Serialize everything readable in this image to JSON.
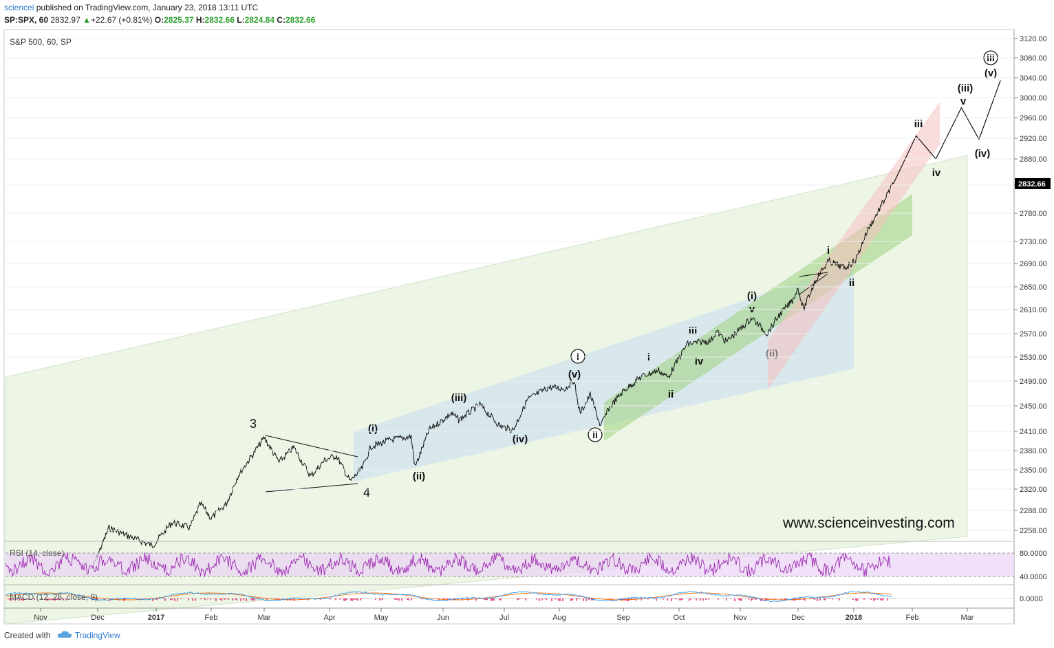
{
  "header": {
    "author": "sciencei",
    "published_text": "published on TradingView.com, January 23, 2018 13:11 UTC",
    "symbol": "SP:SPX, 60",
    "last_price": "2832.97",
    "change": "+22.67 (+0.81%)",
    "o_label": "O:",
    "o_value": "2825.37",
    "h_label": "H:",
    "h_value": "2832.66",
    "l_label": "L:",
    "l_value": "2824.84",
    "c_label": "C:",
    "c_value": "2832.66"
  },
  "footer": {
    "created_with": "Created with",
    "brand": "TradingView"
  },
  "colors": {
    "candle": "#111111",
    "rsi": "#9c27b0",
    "rsi_band": "#ead3f5",
    "macd": "#2196f3",
    "signal": "#ff6f00",
    "hist_neg": "#e91e63",
    "channel_big": "#dfeccf",
    "channel_blue": "#cfe2ee",
    "channel_green": "#9fd27f",
    "channel_pink": "#f5c0c0",
    "price_tag": "#000000"
  },
  "chart_data": {
    "type": "candlestick",
    "pane_label": "S&P 500, 60, SP",
    "watermark": "www.scienceinvesting.com",
    "y_ticks": [
      3120.0,
      3080.0,
      3040.0,
      3000.0,
      2960.0,
      2920.0,
      2880.0,
      2830.0,
      2780.0,
      2730.0,
      2690.0,
      2650.0,
      2610.0,
      2570.0,
      2530.0,
      2490.0,
      2450.0,
      2410.0,
      2380.0,
      2350.0,
      2320.0,
      2288.0,
      2258.0
    ],
    "last_price_tag": "2832.66",
    "x_ticks": [
      {
        "label": "Nov",
        "bold": false
      },
      {
        "label": "Dec",
        "bold": false
      },
      {
        "label": "2017",
        "bold": true
      },
      {
        "label": "Feb",
        "bold": false
      },
      {
        "label": "Mar",
        "bold": false
      },
      {
        "label": "Apr",
        "bold": false
      },
      {
        "label": "May",
        "bold": false
      },
      {
        "label": "Jun",
        "bold": false
      },
      {
        "label": "Jul",
        "bold": false
      },
      {
        "label": "Aug",
        "bold": false
      },
      {
        "label": "Sep",
        "bold": false
      },
      {
        "label": "Oct",
        "bold": false
      },
      {
        "label": "Nov",
        "bold": false
      },
      {
        "label": "Dec",
        "bold": false
      },
      {
        "label": "2018",
        "bold": true
      },
      {
        "label": "Feb",
        "bold": false
      },
      {
        "label": "Mar",
        "bold": false
      }
    ],
    "price_path": [
      [
        "2016-11-28",
        2200
      ],
      [
        "2016-12-07",
        2262
      ],
      [
        "2016-12-15",
        2252
      ],
      [
        "2016-12-30",
        2235
      ],
      [
        "2017-01-10",
        2270
      ],
      [
        "2017-01-20",
        2262
      ],
      [
        "2017-01-26",
        2298
      ],
      [
        "2017-02-01",
        2276
      ],
      [
        "2017-02-09",
        2298
      ],
      [
        "2017-02-15",
        2340
      ],
      [
        "2017-02-22",
        2370
      ],
      [
        "2017-03-01",
        2400
      ],
      [
        "2017-03-08",
        2362
      ],
      [
        "2017-03-15",
        2385
      ],
      [
        "2017-03-23",
        2340
      ],
      [
        "2017-03-30",
        2366
      ],
      [
        "2017-04-05",
        2372
      ],
      [
        "2017-04-13",
        2332
      ],
      [
        "2017-04-20",
        2352
      ],
      [
        "2017-04-25",
        2386
      ],
      [
        "2017-05-05",
        2396
      ],
      [
        "2017-05-16",
        2402
      ],
      [
        "2017-05-18",
        2354
      ],
      [
        "2017-05-25",
        2412
      ],
      [
        "2017-06-05",
        2438
      ],
      [
        "2017-06-09",
        2428
      ],
      [
        "2017-06-19",
        2452
      ],
      [
        "2017-06-29",
        2418
      ],
      [
        "2017-07-06",
        2412
      ],
      [
        "2017-07-14",
        2460
      ],
      [
        "2017-07-26",
        2480
      ],
      [
        "2017-08-04",
        2478
      ],
      [
        "2017-08-08",
        2492
      ],
      [
        "2017-08-11",
        2438
      ],
      [
        "2017-08-16",
        2468
      ],
      [
        "2017-08-21",
        2418
      ],
      [
        "2017-08-25",
        2446
      ],
      [
        "2017-09-01",
        2474
      ],
      [
        "2017-09-11",
        2498
      ],
      [
        "2017-09-20",
        2508
      ],
      [
        "2017-09-25",
        2496
      ],
      [
        "2017-10-05",
        2552
      ],
      [
        "2017-10-13",
        2556
      ],
      [
        "2017-10-17",
        2558
      ],
      [
        "2017-10-20",
        2574
      ],
      [
        "2017-10-25",
        2556
      ],
      [
        "2017-11-07",
        2596
      ],
      [
        "2017-11-15",
        2570
      ],
      [
        "2017-11-21",
        2600
      ],
      [
        "2017-11-28",
        2626
      ],
      [
        "2017-12-01",
        2648
      ],
      [
        "2017-12-04",
        2610
      ],
      [
        "2017-12-11",
        2664
      ],
      [
        "2017-12-18",
        2694
      ],
      [
        "2017-12-27",
        2682
      ],
      [
        "2018-01-02",
        2696
      ],
      [
        "2018-01-08",
        2748
      ],
      [
        "2018-01-16",
        2796
      ],
      [
        "2018-01-22",
        2832.66
      ]
    ],
    "projection_path": [
      [
        "2018-01-22",
        2832.66
      ],
      [
        "2018-02-03",
        2925
      ],
      [
        "2018-02-13",
        2880
      ],
      [
        "2018-02-26",
        2980
      ],
      [
        "2018-03-07",
        2918
      ],
      [
        "2018-03-18",
        3035
      ]
    ],
    "wave_labels": [
      "3",
      "4",
      "(i)",
      "(ii)",
      "(iii)",
      "(iv)",
      "(v)",
      "i",
      "ii",
      "ii",
      "iii",
      "iv",
      "(i)",
      "v",
      "(ii)",
      "i",
      "ii",
      "iii",
      "iv",
      "(iii)",
      "v",
      "(iv)",
      "(v)",
      "iii"
    ],
    "rsi": {
      "label": "RSI (14, close)",
      "upper": 80,
      "lower": 40,
      "ticks": [
        "80.0000",
        "40.0000"
      ]
    },
    "macd": {
      "label": "MACD (12, 26, close, 9)",
      "ticks": [
        "0.0000"
      ]
    }
  }
}
